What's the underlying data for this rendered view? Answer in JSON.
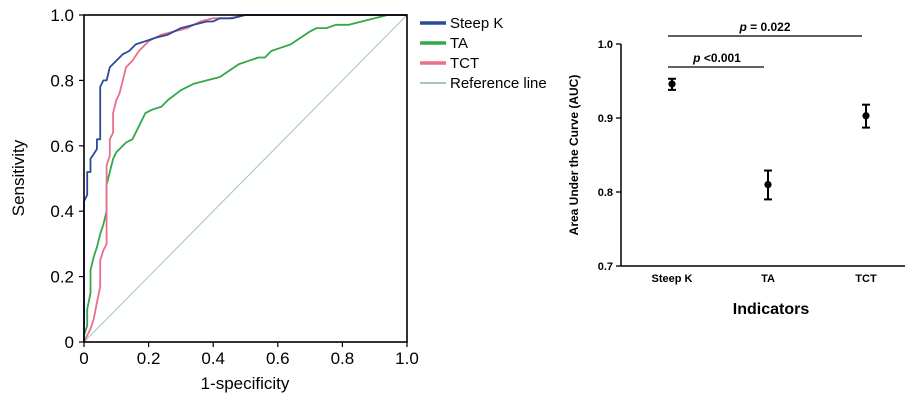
{
  "chart_data": [
    {
      "type": "line",
      "title": "",
      "xlabel": "1-specificity",
      "ylabel": "Sensitivity",
      "xlim": [
        0,
        1
      ],
      "ylim": [
        0,
        1
      ],
      "xticks": [
        "0",
        "0.2",
        "0.4",
        "0.6",
        "0.8",
        "1.0"
      ],
      "yticks": [
        "0",
        "0.2",
        "0.4",
        "0.6",
        "0.8",
        "1.0"
      ],
      "legend_position": "outside-top-right",
      "grid": false,
      "series": [
        {
          "name": "Steep K",
          "color": "#2a4a9c",
          "points": [
            [
              0,
              0
            ],
            [
              0,
              0.43
            ],
            [
              0.01,
              0.45
            ],
            [
              0.01,
              0.52
            ],
            [
              0.02,
              0.52
            ],
            [
              0.02,
              0.56
            ],
            [
              0.04,
              0.59
            ],
            [
              0.04,
              0.62
            ],
            [
              0.05,
              0.62
            ],
            [
              0.05,
              0.78
            ],
            [
              0.06,
              0.8
            ],
            [
              0.07,
              0.8
            ],
            [
              0.08,
              0.84
            ],
            [
              0.1,
              0.86
            ],
            [
              0.12,
              0.88
            ],
            [
              0.14,
              0.89
            ],
            [
              0.16,
              0.91
            ],
            [
              0.19,
              0.92
            ],
            [
              0.22,
              0.93
            ],
            [
              0.26,
              0.94
            ],
            [
              0.3,
              0.96
            ],
            [
              0.34,
              0.97
            ],
            [
              0.38,
              0.98
            ],
            [
              0.4,
              0.98
            ],
            [
              0.42,
              0.99
            ],
            [
              0.46,
              0.99
            ],
            [
              0.5,
              1.0
            ],
            [
              0.6,
              1.0
            ],
            [
              1.0,
              1.0
            ]
          ]
        },
        {
          "name": "TA",
          "color": "#33a84a",
          "points": [
            [
              0,
              0
            ],
            [
              0,
              0.02
            ],
            [
              0.01,
              0.05
            ],
            [
              0.01,
              0.1
            ],
            [
              0.02,
              0.15
            ],
            [
              0.02,
              0.22
            ],
            [
              0.03,
              0.26
            ],
            [
              0.04,
              0.29
            ],
            [
              0.05,
              0.33
            ],
            [
              0.06,
              0.36
            ],
            [
              0.07,
              0.4
            ],
            [
              0.07,
              0.48
            ],
            [
              0.08,
              0.52
            ],
            [
              0.09,
              0.56
            ],
            [
              0.1,
              0.58
            ],
            [
              0.11,
              0.59
            ],
            [
              0.13,
              0.61
            ],
            [
              0.15,
              0.62
            ],
            [
              0.17,
              0.66
            ],
            [
              0.19,
              0.7
            ],
            [
              0.21,
              0.71
            ],
            [
              0.24,
              0.72
            ],
            [
              0.26,
              0.74
            ],
            [
              0.3,
              0.77
            ],
            [
              0.34,
              0.79
            ],
            [
              0.38,
              0.8
            ],
            [
              0.42,
              0.81
            ],
            [
              0.45,
              0.83
            ],
            [
              0.48,
              0.85
            ],
            [
              0.51,
              0.86
            ],
            [
              0.54,
              0.87
            ],
            [
              0.56,
              0.87
            ],
            [
              0.58,
              0.89
            ],
            [
              0.61,
              0.9
            ],
            [
              0.64,
              0.91
            ],
            [
              0.67,
              0.93
            ],
            [
              0.7,
              0.95
            ],
            [
              0.72,
              0.96
            ],
            [
              0.75,
              0.96
            ],
            [
              0.78,
              0.97
            ],
            [
              0.82,
              0.97
            ],
            [
              0.86,
              0.98
            ],
            [
              0.9,
              0.99
            ],
            [
              0.94,
              1.0
            ],
            [
              1.0,
              1.0
            ]
          ]
        },
        {
          "name": "TCT",
          "color": "#e8708a",
          "points": [
            [
              0,
              0
            ],
            [
              0.01,
              0.02
            ],
            [
              0.02,
              0.04
            ],
            [
              0.03,
              0.07
            ],
            [
              0.04,
              0.12
            ],
            [
              0.05,
              0.17
            ],
            [
              0.05,
              0.25
            ],
            [
              0.06,
              0.28
            ],
            [
              0.07,
              0.3
            ],
            [
              0.07,
              0.4
            ],
            [
              0.07,
              0.54
            ],
            [
              0.08,
              0.57
            ],
            [
              0.08,
              0.62
            ],
            [
              0.09,
              0.64
            ],
            [
              0.09,
              0.7
            ],
            [
              0.1,
              0.74
            ],
            [
              0.11,
              0.76
            ],
            [
              0.12,
              0.8
            ],
            [
              0.13,
              0.84
            ],
            [
              0.15,
              0.86
            ],
            [
              0.17,
              0.89
            ],
            [
              0.2,
              0.92
            ],
            [
              0.24,
              0.94
            ],
            [
              0.28,
              0.95
            ],
            [
              0.32,
              0.96
            ],
            [
              0.36,
              0.98
            ],
            [
              0.4,
              0.99
            ],
            [
              0.45,
              0.99
            ],
            [
              0.5,
              1.0
            ],
            [
              0.6,
              1.0
            ],
            [
              1.0,
              1.0
            ]
          ]
        },
        {
          "name": "Reference line",
          "color": "#9cc7c2",
          "points": [
            [
              0,
              0
            ],
            [
              1,
              1
            ]
          ]
        }
      ]
    },
    {
      "type": "scatter",
      "title": "",
      "xlabel": "Indicators",
      "ylabel": "Area Under the Curve (AUC)",
      "ylim": [
        0.7,
        1.0
      ],
      "yticks": [
        "0.7",
        "0.8",
        "0.9",
        "1.0"
      ],
      "categories": [
        "Steep K",
        "TA",
        "TCT"
      ],
      "values": [
        0.946,
        0.81,
        0.903
      ],
      "error_low": [
        0.938,
        0.79,
        0.887
      ],
      "error_high": [
        0.953,
        0.829,
        0.918
      ],
      "annotations": [
        {
          "from": "Steep K",
          "to": "TA",
          "p_label": "p",
          "text": "<0.001"
        },
        {
          "from": "Steep K",
          "to": "TCT",
          "p_label": "p",
          "text": "= 0.022"
        }
      ]
    }
  ]
}
